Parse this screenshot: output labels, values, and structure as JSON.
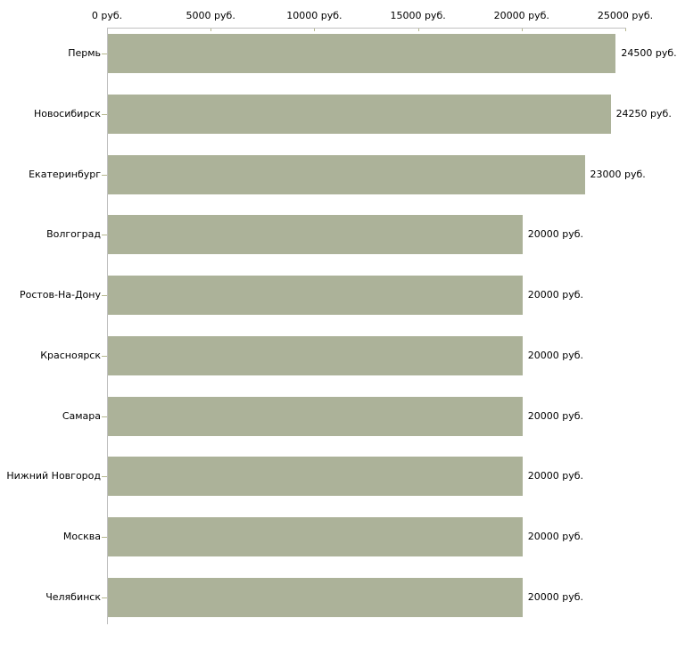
{
  "chart_data": {
    "type": "bar",
    "orientation": "horizontal",
    "title": "",
    "xlabel": "",
    "ylabel": "",
    "unit": "руб.",
    "categories": [
      "Пермь",
      "Новосибирск",
      "Екатеринбург",
      "Волгоград",
      "Ростов-На-Дону",
      "Красноярск",
      "Самара",
      "Нижний Новгород",
      "Москва",
      "Челябинск"
    ],
    "values": [
      24500,
      24250,
      23000,
      20000,
      20000,
      20000,
      20000,
      20000,
      20000,
      20000
    ],
    "value_labels": [
      "24500 руб.",
      "24250 руб.",
      "23000 руб.",
      "20000 руб.",
      "20000 руб.",
      "20000 руб.",
      "20000 руб.",
      "20000 руб.",
      "20000 руб.",
      "20000 руб."
    ],
    "xlim": [
      0,
      25000
    ],
    "x_ticks": [
      0,
      5000,
      10000,
      15000,
      20000,
      25000
    ],
    "x_tick_labels": [
      "0 руб.",
      "5000 руб.",
      "10000 руб.",
      "15000 руб.",
      "20000 руб.",
      "25000 руб."
    ],
    "grid": false,
    "legend": false,
    "colors": {
      "bar_fill": "#acb299",
      "axis_line": "#c0c0c0",
      "tick_mark": "#b5b78d",
      "text": "#000000",
      "background": "#ffffff"
    }
  }
}
